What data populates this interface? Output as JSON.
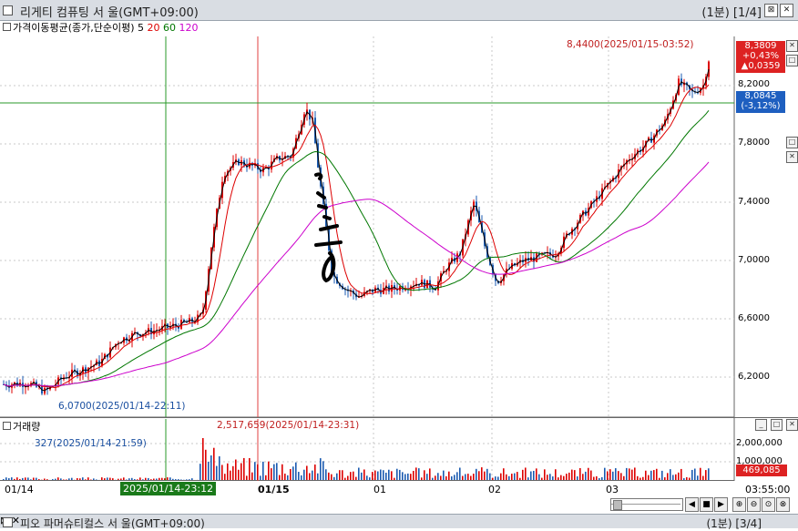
{
  "window": {
    "title": "리게티 컴퓨팅  서 울(GMT+09:00)",
    "page_info": "(1분) [1/4]",
    "controls": [
      "⊠",
      "✕"
    ]
  },
  "indicator": {
    "label": "가격이동평균(종가,단순이평)",
    "periods": [
      {
        "value": "5",
        "color": "#000000"
      },
      {
        "value": "20",
        "color": "#dd0000"
      },
      {
        "value": "60",
        "color": "#007700"
      },
      {
        "value": "120",
        "color": "#cc00cc"
      }
    ]
  },
  "price_axis": {
    "ticks": [
      "8,2000",
      "7,8000",
      "7,4000",
      "7,0000",
      "6,6000",
      "6,2000"
    ]
  },
  "last_price": {
    "price": "8,3809",
    "change_pct": "+0,43%",
    "change_abs": "▲0,0359"
  },
  "crosshair_price": {
    "price": "8,0845",
    "change_pct": "(-3,12%)"
  },
  "annotations": {
    "high": "8,4400(2025/01/15-03:52)",
    "low": "6,0700(2025/01/14-22:11)",
    "vol_high": "2,517,659(2025/01/14-23:31)",
    "vol_low": "327(2025/01/14-21:59)"
  },
  "volume_pane": {
    "label": "거래량",
    "ticks": [
      "2,000,000",
      "1,000,000"
    ],
    "last_volume": "469,085"
  },
  "time_axis": {
    "labels": [
      "01/14",
      "01/15",
      "01",
      "02",
      "03"
    ],
    "crosshair_time": "2025/01/14-23:12",
    "last_time": "03:55:00"
  },
  "second_window": {
    "title": "피오 파머슈티컬스  서 울(GMT+09:00)",
    "page_info": "(1분) [3/4]"
  },
  "colors": {
    "candle_up": "#dd0000",
    "candle_down": "#1a5ab0",
    "ma5": "#000000",
    "ma20": "#dd0000",
    "ma60": "#007700",
    "ma120": "#cc00cc",
    "last_price_tag": "#dd2222",
    "crosshair_tag": "#1e5fc0",
    "crosshair_time_tag": "#1a7a1a"
  }
}
